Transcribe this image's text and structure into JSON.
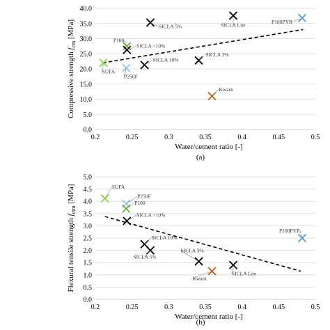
{
  "chart_data": [
    {
      "type": "scatter",
      "panel_label": "(a)",
      "ylabel_main": "Compressive strength ",
      "ylabel_var": "f",
      "ylabel_sub": "cm",
      "ylabel_unit": " [MPa]",
      "xlabel": "Water/cement ratio [-]",
      "xlim": [
        0.2,
        0.5
      ],
      "ylim": [
        0,
        40
      ],
      "x_ticks": [
        "0.2",
        "0.25",
        "0.3",
        "0.35",
        "0.4",
        "0.45",
        "0.5"
      ],
      "y_ticks": [
        "0.0",
        "5.0",
        "10.0",
        "15.0",
        "20.0",
        "25.0",
        "30.0",
        "35.0",
        "40.0"
      ],
      "grid": "horizontal",
      "trendline": {
        "x": [
          0.21,
          0.483
        ],
        "y": [
          22.0,
          33.0
        ]
      },
      "points": [
        {
          "label": "SUFA",
          "x": 0.211,
          "y": 22.0,
          "color": "#92d050"
        },
        {
          "label": "P250F",
          "x": 0.242,
          "y": 20.3,
          "color": "#9dc3e6"
        },
        {
          "label": "P100",
          "x": 0.243,
          "y": 27.5,
          "color": "#70ad47"
        },
        {
          "label": "SICLA >10%",
          "x": 0.243,
          "y": 26.3,
          "color": "#000000"
        },
        {
          "label": "SICLA 10%",
          "x": 0.267,
          "y": 21.3,
          "color": "#000000"
        },
        {
          "label": "SICLA 5%",
          "x": 0.275,
          "y": 35.3,
          "color": "#000000"
        },
        {
          "label": "SICLA 3%",
          "x": 0.341,
          "y": 22.8,
          "color": "#000000"
        },
        {
          "label": "Kwark",
          "x": 0.359,
          "y": 11.0,
          "color": "#c55a11"
        },
        {
          "label": "SICLA Lite",
          "x": 0.388,
          "y": 37.6,
          "color": "#000000"
        },
        {
          "label": "P100PYR",
          "x": 0.482,
          "y": 36.8,
          "color": "#5b9bd5"
        }
      ]
    },
    {
      "type": "scatter",
      "panel_label": "(b)",
      "ylabel_main": "Flexural tensile strength ",
      "ylabel_var": "f",
      "ylabel_sub": "ctm",
      "ylabel_unit": " [MPa]",
      "xlabel": "Water/cement ratio [-]",
      "xlim": [
        0.2,
        0.5
      ],
      "ylim": [
        0,
        5
      ],
      "x_ticks": [
        "0.2",
        "0.25",
        "0.3",
        "0.35",
        "0.4",
        "0.45",
        "0.5"
      ],
      "y_ticks": [
        "0.0",
        "0.5",
        "1.0",
        "1.5",
        "2.0",
        "2.5",
        "3.0",
        "3.5",
        "4.0",
        "4.5",
        "5.0"
      ],
      "grid": "horizontal",
      "trendline": {
        "x": [
          0.213,
          0.48
        ],
        "y": [
          3.38,
          1.15
        ]
      },
      "points": [
        {
          "label": "SUFA",
          "x": 0.213,
          "y": 4.12,
          "color": "#92d050"
        },
        {
          "label": "P250F",
          "x": 0.242,
          "y": 3.9,
          "color": "#9dc3e6"
        },
        {
          "label": "P100",
          "x": 0.242,
          "y": 3.7,
          "color": "#70ad47"
        },
        {
          "label": "SICLA >10%",
          "x": 0.243,
          "y": 3.2,
          "color": "#000000"
        },
        {
          "label": "SICLA 10%",
          "x": 0.267,
          "y": 2.25,
          "color": "#000000"
        },
        {
          "label": "SICLA 5%",
          "x": 0.275,
          "y": 2.0,
          "color": "#000000"
        },
        {
          "label": "SICLA 3%",
          "x": 0.341,
          "y": 1.55,
          "color": "#000000"
        },
        {
          "label": "Kwark",
          "x": 0.359,
          "y": 1.15,
          "color": "#c55a11"
        },
        {
          "label": "SICLA Lite",
          "x": 0.388,
          "y": 1.4,
          "color": "#000000"
        },
        {
          "label": "P100PYR",
          "x": 0.482,
          "y": 2.5,
          "color": "#5b9bd5"
        }
      ]
    }
  ]
}
